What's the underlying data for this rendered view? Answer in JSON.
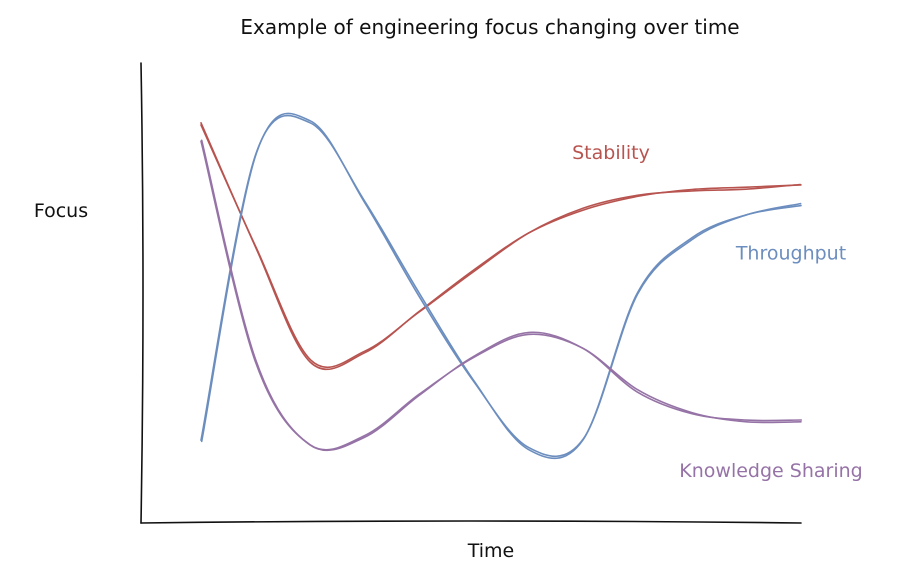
{
  "chart_data": {
    "type": "line",
    "title": "Example of engineering focus changing over time",
    "xlabel": "Time",
    "ylabel": "Focus",
    "x": [
      0,
      1,
      2,
      3,
      4,
      5,
      6,
      7,
      8,
      9,
      10,
      11
    ],
    "xlim": [
      0,
      11
    ],
    "ylim": [
      0,
      10
    ],
    "grid": false,
    "series": [
      {
        "name": "Stability",
        "color": "#b85450",
        "label_pos": "above end",
        "values": [
          8.7,
          6.0,
          3.5,
          3.7,
          4.6,
          5.5,
          6.3,
          6.8,
          7.1,
          7.25,
          7.3,
          7.35
        ]
      },
      {
        "name": "Throughput",
        "color": "#6c8ebf",
        "label_pos": "right end",
        "values": [
          1.8,
          8.0,
          8.7,
          7.0,
          5.0,
          3.1,
          1.6,
          1.8,
          5.0,
          6.2,
          6.7,
          6.9
        ]
      },
      {
        "name": "Knowledge Sharing",
        "color": "#9673a6",
        "label_pos": "below end",
        "values": [
          8.3,
          3.5,
          1.7,
          1.9,
          2.8,
          3.6,
          4.1,
          3.8,
          2.9,
          2.4,
          2.2,
          2.2
        ]
      }
    ]
  }
}
